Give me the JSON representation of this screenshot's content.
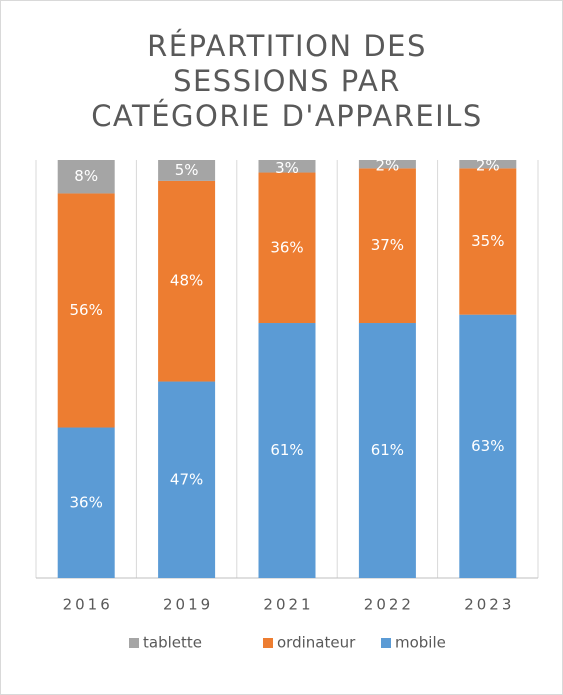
{
  "chart_data": {
    "type": "stacked_bar",
    "title": [
      "RÉPARTITION DES",
      "SESSIONS PAR",
      "CATÉGORIE D'APPAREILS"
    ],
    "categories": [
      "2016",
      "2019",
      "2021",
      "2022",
      "2023"
    ],
    "series": [
      {
        "name": "mobile",
        "color": "#5b9bd5",
        "values": [
          36,
          47,
          61,
          61,
          63
        ],
        "value_labels": [
          "36%",
          "47%",
          "61%",
          "61%",
          "63%"
        ]
      },
      {
        "name": "ordinateur",
        "color": "#ed7d31",
        "values": [
          56,
          48,
          36,
          37,
          35
        ],
        "value_labels": [
          "56%",
          "48%",
          "36%",
          "37%",
          "35%"
        ]
      },
      {
        "name": "tablette",
        "color": "#a5a5a5",
        "values": [
          8,
          5,
          3,
          2,
          2
        ],
        "value_labels": [
          "8%",
          "5%",
          "3%",
          "2%",
          "2%"
        ]
      }
    ],
    "ylim": [
      0,
      100
    ],
    "legend": "bottom"
  }
}
